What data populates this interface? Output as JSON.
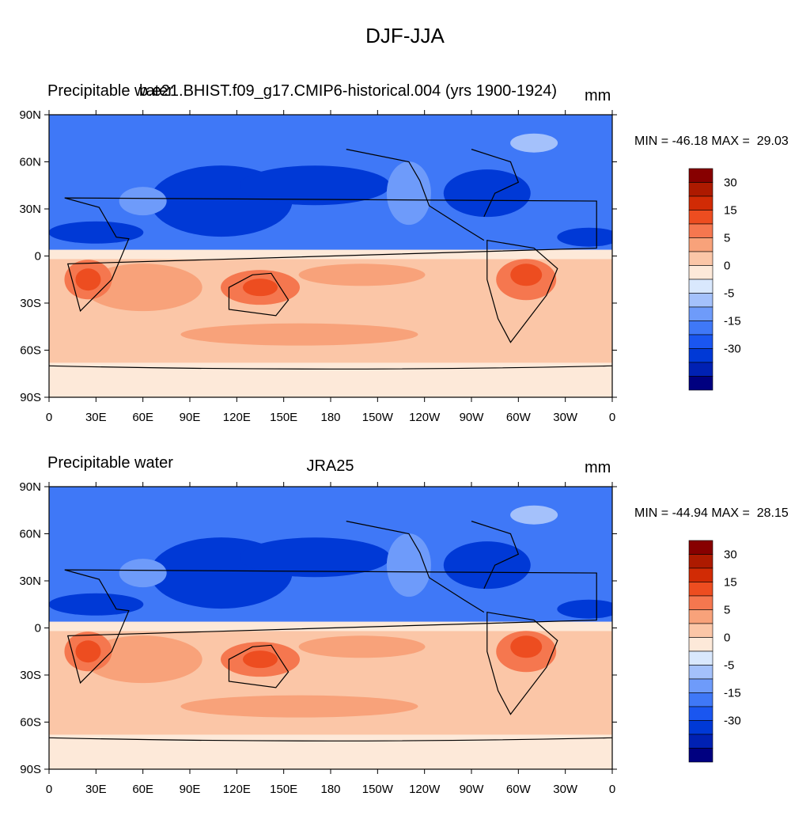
{
  "title": "DJF-JJA",
  "panels": [
    {
      "left_label": "Precipitable water",
      "center_label": "b.e21.BHIST.f09_g17.CMIP6-historical.004 (yrs 1900-1924)",
      "units": "mm",
      "min": "-46.18",
      "max": "29.03",
      "minmax_text": "MIN = -46.18 MAX =  29.03"
    },
    {
      "left_label": "Precipitable water",
      "center_label": "JRA25",
      "units": "mm",
      "min": "-44.94",
      "max": "28.15",
      "minmax_text": "MIN = -44.94 MAX =  28.15"
    }
  ],
  "lat_ticks": [
    "90N",
    "60N",
    "30N",
    "0",
    "30S",
    "60S",
    "90S"
  ],
  "lon_ticks": [
    "0",
    "30E",
    "60E",
    "90E",
    "120E",
    "150E",
    "180",
    "150W",
    "120W",
    "90W",
    "60W",
    "30W",
    "0"
  ],
  "colorbar": {
    "colors": [
      "#000080",
      "#0021b3",
      "#0039d6",
      "#1a56f0",
      "#3f78f7",
      "#6e9bfa",
      "#a4c1fb",
      "#d9e8fd",
      "#fde9d9",
      "#fbc6a7",
      "#f8a27a",
      "#f5774f",
      "#ed4d20",
      "#d12b05",
      "#ad1a00",
      "#870000"
    ],
    "labels": [
      "30",
      "15",
      "5",
      "0",
      "-5",
      "-15",
      "-30"
    ]
  },
  "map_colors": {
    "ocean_neutral": "#fde9d9",
    "deep_blue": "#0039d6",
    "mid_blue": "#3f78f7",
    "light_blue": "#6e9bfa",
    "pale_blue": "#a4c1fb",
    "pale_orange": "#fbc6a7",
    "mid_orange": "#f8a27a",
    "strong_orange": "#f5774f",
    "red": "#ed4d20"
  }
}
